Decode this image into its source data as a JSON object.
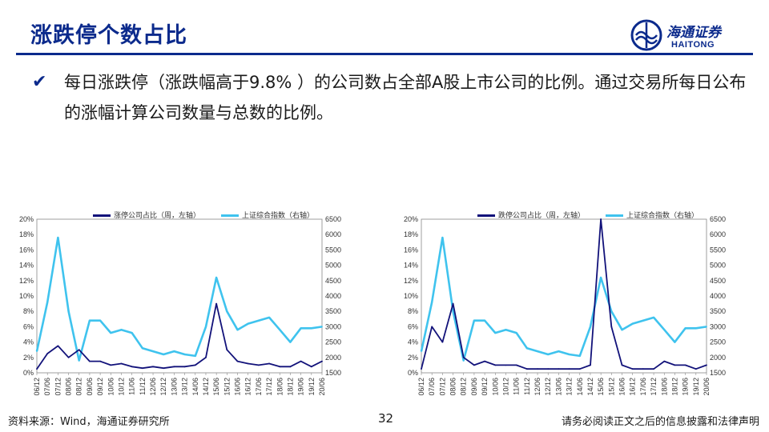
{
  "header": {
    "title": "涨跌停个数占比",
    "logo_cn": "海通证券",
    "logo_en": "HAITONG"
  },
  "bullet": {
    "text": "每日涨跌停（涨跌幅高于9.8% ）的公司数占全部A股上市公司的比例。通过交易所每日公布的涨幅计算公司数量与总数的比例。"
  },
  "colors": {
    "navy": "#0b2a8c",
    "primary_series": "#12127a",
    "index_series": "#3fc3ee"
  },
  "chart_data": [
    {
      "type": "line",
      "x": [
        "06/12",
        "07/06",
        "07/12",
        "08/06",
        "08/12",
        "09/06",
        "09/12",
        "10/06",
        "10/12",
        "11/06",
        "11/12",
        "12/06",
        "12/12",
        "13/06",
        "13/12",
        "14/06",
        "14/12",
        "15/06",
        "15/12",
        "16/06",
        "16/12",
        "17/06",
        "17/12",
        "18/06",
        "18/12",
        "19/06",
        "19/12",
        "20/06"
      ],
      "series": [
        {
          "name": "涨停公司占比（周，左轴）",
          "axis": "left",
          "values": [
            0.5,
            2.5,
            3.5,
            2.0,
            3.0,
            1.5,
            1.5,
            1.0,
            1.2,
            0.8,
            0.6,
            0.8,
            0.6,
            0.8,
            0.8,
            1.0,
            2.0,
            9.0,
            3.0,
            1.5,
            1.2,
            1.0,
            1.2,
            0.8,
            0.8,
            1.5,
            0.8,
            1.5
          ]
        },
        {
          "name": "上证综合指数（右轴）",
          "axis": "right",
          "values": [
            2200,
            3800,
            5900,
            3500,
            1900,
            3200,
            3200,
            2800,
            2900,
            2800,
            2300,
            2200,
            2100,
            2200,
            2100,
            2050,
            3000,
            4600,
            3500,
            2900,
            3100,
            3200,
            3300,
            2900,
            2500,
            2950,
            2950,
            3000
          ]
        }
      ],
      "y_left": {
        "min": 0,
        "max": 20,
        "ticks": [
          "0%",
          "2%",
          "4%",
          "6%",
          "8%",
          "10%",
          "12%",
          "14%",
          "16%",
          "18%",
          "20%"
        ]
      },
      "y_right": {
        "min": 1500,
        "max": 6500,
        "ticks": [
          "1500",
          "2000",
          "2500",
          "3000",
          "3500",
          "4000",
          "4500",
          "5000",
          "5500",
          "6000",
          "6500"
        ]
      }
    },
    {
      "type": "line",
      "x": [
        "06/12",
        "07/06",
        "07/12",
        "08/06",
        "08/12",
        "09/06",
        "09/12",
        "10/06",
        "10/12",
        "11/06",
        "11/12",
        "12/06",
        "12/12",
        "13/06",
        "13/12",
        "14/06",
        "14/12",
        "15/06",
        "15/12",
        "16/06",
        "16/12",
        "17/06",
        "17/12",
        "18/06",
        "18/12",
        "19/06",
        "19/12",
        "20/06"
      ],
      "series": [
        {
          "name": "跌停公司占比（周，左轴）",
          "axis": "left",
          "values": [
            0.5,
            6.0,
            4.0,
            9.0,
            2.0,
            1.0,
            1.5,
            1.0,
            1.0,
            1.0,
            0.5,
            0.5,
            0.5,
            0.5,
            0.5,
            0.5,
            1.0,
            20.0,
            6.0,
            1.0,
            0.5,
            0.5,
            0.5,
            1.5,
            1.0,
            1.0,
            0.5,
            1.0
          ]
        },
        {
          "name": "上证综合指数（右轴）",
          "axis": "right",
          "values": [
            2200,
            3800,
            5900,
            3500,
            1900,
            3200,
            3200,
            2800,
            2900,
            2800,
            2300,
            2200,
            2100,
            2200,
            2100,
            2050,
            3000,
            4600,
            3500,
            2900,
            3100,
            3200,
            3300,
            2900,
            2500,
            2950,
            2950,
            3000
          ]
        }
      ],
      "y_left": {
        "min": 0,
        "max": 20,
        "ticks": [
          "0%",
          "2%",
          "4%",
          "6%",
          "8%",
          "10%",
          "12%",
          "14%",
          "16%",
          "18%",
          "20%"
        ]
      },
      "y_right": {
        "min": 1500,
        "max": 6500,
        "ticks": [
          "1500",
          "2000",
          "2500",
          "3000",
          "3500",
          "4000",
          "4500",
          "5000",
          "5500",
          "6000",
          "6500"
        ]
      }
    }
  ],
  "footer": {
    "source": "资料来源：Wind，海通证券研究所",
    "page_number": "32",
    "disclaimer": "请务必阅读正文之后的信息披露和法律声明"
  }
}
